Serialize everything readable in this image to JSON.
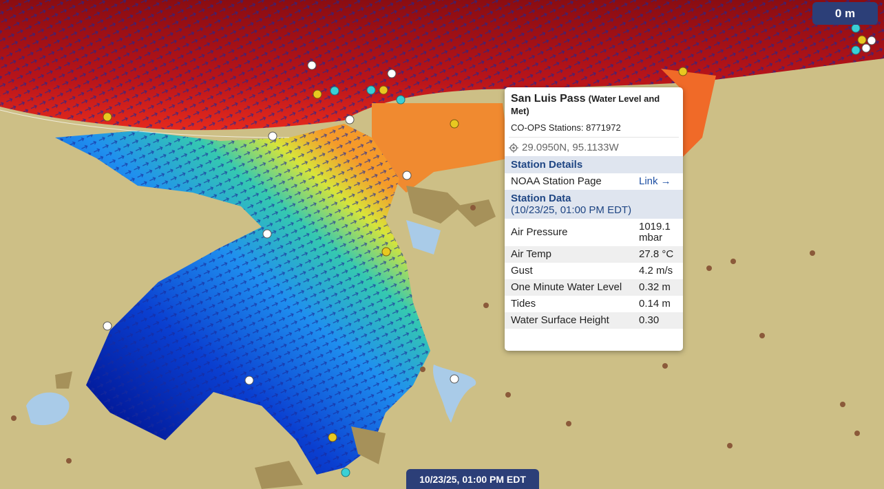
{
  "scale_label": "0 m",
  "timestamp": "10/23/25, 01:00 PM EDT",
  "popup": {
    "title": "San Luis Pass",
    "title_note": "(Water Level and Met)",
    "stations": "CO-OPS Stations: 8771972",
    "coordinates": "29.0950N, 95.1133W",
    "details_heading": "Station Details",
    "details": [
      {
        "label": "NOAA Station Page",
        "value": "Link →"
      }
    ],
    "data_heading": "Station Data",
    "data_time": "(10/23/25, 01:00 PM EDT)",
    "rows": [
      {
        "label": "Air Pressure",
        "value": "1019.1 mbar"
      },
      {
        "label": "Air Temp",
        "value": "27.8 °C"
      },
      {
        "label": "Gust",
        "value": "4.2 m/s"
      },
      {
        "label": "One Minute Water Level",
        "value": "0.32 m"
      },
      {
        "label": "Tides",
        "value": "0.14 m"
      },
      {
        "label": "Water Surface Height",
        "value": "0.30"
      }
    ]
  }
}
